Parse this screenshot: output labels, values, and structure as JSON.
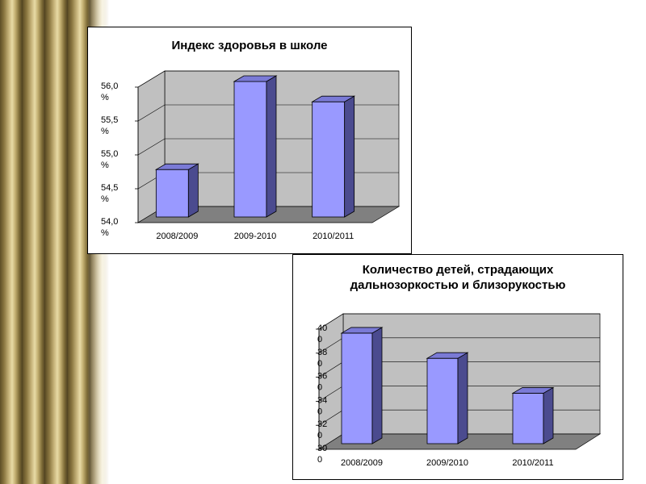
{
  "colors": {
    "bar_front": "#9999ff",
    "bar_side": "#4b4b8f",
    "bar_top": "#7a7ad6",
    "wall": "#c0c0c0",
    "floor": "#808080",
    "grid": "#000000"
  },
  "chart_data": [
    {
      "type": "bar",
      "title": "Индекс здоровья в школе",
      "categories": [
        "2008/2009",
        "2009-2010",
        "2010/2011"
      ],
      "values": [
        54.7,
        56.0,
        55.7
      ],
      "ylim": [
        54.0,
        56.0
      ],
      "ticks": [
        54.0,
        54.5,
        55.0,
        55.5,
        56.0
      ],
      "tick_labels": [
        [
          "54,0",
          "%"
        ],
        [
          "54,5",
          "%"
        ],
        [
          "55,0",
          "%"
        ],
        [
          "55,5",
          "%"
        ],
        [
          "56,0",
          "%"
        ]
      ],
      "grid": true,
      "three_d": true
    },
    {
      "type": "bar",
      "title_lines": [
        "Количество детей, страдающих",
        "дальнозоркостью и близорукостью"
      ],
      "categories": [
        "2008/2009",
        "2009/2010",
        "2010/2011"
      ],
      "values": [
        392,
        371,
        342
      ],
      "ylim": [
        300,
        400
      ],
      "ticks": [
        300,
        320,
        340,
        360,
        380,
        400
      ],
      "tick_labels": [
        [
          "30",
          "0"
        ],
        [
          "32",
          "0"
        ],
        [
          "34",
          "0"
        ],
        [
          "36",
          "0"
        ],
        [
          "38",
          "0"
        ],
        [
          "40",
          "0"
        ]
      ],
      "grid": true,
      "three_d": true
    }
  ]
}
